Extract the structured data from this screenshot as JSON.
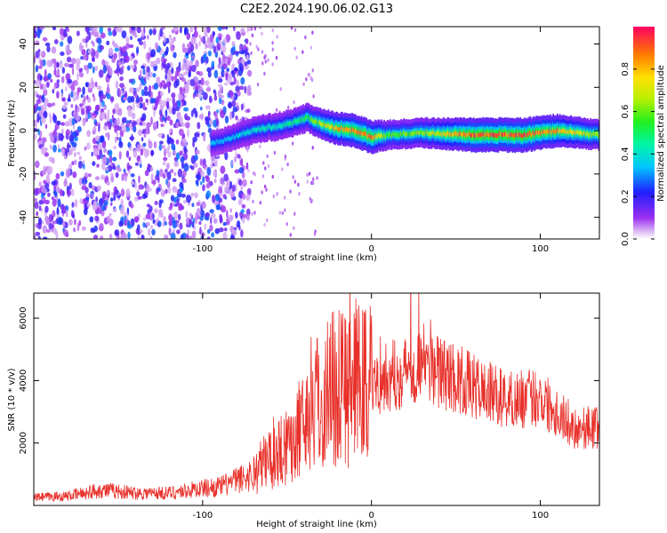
{
  "title": "C2E2.2024.190.06.02.G13",
  "colorbar": {
    "label": "Normalized spectral amplitude",
    "ticks": [
      "0.0",
      "0.2",
      "0.4",
      "0.6",
      "0.8"
    ],
    "tick_values": [
      0.0,
      0.2,
      0.4,
      0.6,
      0.8
    ],
    "range": [
      0,
      1
    ]
  },
  "chart_data": [
    {
      "type": "heatmap",
      "title": "C2E2.2024.190.06.02.G13",
      "xlabel": "Height of straight line (km)",
      "ylabel": "Frequency (Hz)",
      "xlim": [
        -200,
        135
      ],
      "ylim": [
        -50,
        48
      ],
      "x_ticks": [
        -100,
        0,
        100
      ],
      "x_tick_labels": [
        "-100",
        "0",
        "100"
      ],
      "y_ticks": [
        -40,
        -20,
        0,
        20,
        40
      ],
      "y_tick_labels": [
        "-40",
        "-20",
        "0",
        "20",
        "40"
      ],
      "colormap": "rainbow (purple to red)",
      "signal_track": {
        "x": [
          -95,
          -85,
          -75,
          -65,
          -55,
          -45,
          -38,
          -30,
          -20,
          -10,
          0,
          10,
          30,
          60,
          90,
          110,
          135
        ],
        "y": [
          -6,
          -4,
          -1,
          1,
          2,
          4,
          6,
          3,
          1,
          0,
          -3,
          -2,
          -1,
          -2,
          -2,
          0,
          -2
        ],
        "amplitude": [
          0.35,
          0.35,
          0.4,
          0.45,
          0.45,
          0.5,
          0.55,
          0.7,
          0.85,
          0.9,
          0.9,
          0.6,
          0.65,
          0.95,
          0.95,
          0.85,
          0.65
        ]
      }
    },
    {
      "type": "line",
      "xlabel": "Height of straight line (km)",
      "ylabel": "SNR (10 * v/v)",
      "xlim": [
        -200,
        135
      ],
      "ylim": [
        0,
        6800
      ],
      "x_ticks": [
        -100,
        0,
        100
      ],
      "x_tick_labels": [
        "-100",
        "0",
        "100"
      ],
      "y_ticks": [
        2000,
        4000,
        6000
      ],
      "y_tick_labels": [
        "2000",
        "4000",
        "6000"
      ],
      "color": "#e8302a",
      "series": [
        {
          "x": [
            -200,
            -180,
            -160,
            -140,
            -120,
            -100,
            -90,
            -80,
            -70,
            -60,
            -50,
            -40,
            -35,
            -30,
            -25,
            -20,
            -10,
            0,
            10,
            20,
            30,
            40,
            50,
            60,
            70,
            80,
            90,
            100,
            110,
            120,
            135
          ],
          "values": [
            250,
            300,
            500,
            400,
            400,
            550,
            600,
            800,
            1000,
            1600,
            2000,
            2600,
            3500,
            3200,
            3800,
            4000,
            3900,
            4000,
            4100,
            4300,
            4600,
            4300,
            4100,
            3800,
            3600,
            3400,
            3400,
            3500,
            3000,
            2500,
            2500
          ]
        }
      ]
    }
  ]
}
